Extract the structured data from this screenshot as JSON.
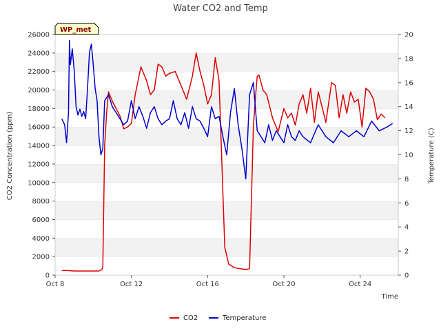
{
  "chart_data": {
    "type": "line",
    "title": "Water CO2 and Temp",
    "xlabel": "Time",
    "ylabel_left": "CO2 Concentration (ppm)",
    "ylabel_right": "Temperature (C)",
    "tag_label": "WP_met",
    "x_ticks": [
      "Oct 8",
      "Oct 12",
      "Oct 16",
      "Oct 20",
      "Oct 24"
    ],
    "x_tick_days": [
      8,
      12,
      16,
      20,
      24
    ],
    "xlim": [
      8,
      26
    ],
    "ylim_left": [
      0,
      26000
    ],
    "ylim_right": [
      0,
      20
    ],
    "y_ticks_left": [
      0,
      2000,
      4000,
      6000,
      8000,
      10000,
      12000,
      14000,
      16000,
      18000,
      20000,
      22000,
      24000,
      26000
    ],
    "y_ticks_right": [
      0,
      2,
      4,
      6,
      8,
      10,
      12,
      14,
      16,
      18,
      20
    ],
    "grid": "horizontal bands",
    "legend_position": "bottom-center",
    "series": [
      {
        "name": "CO2",
        "axis": "left",
        "color": "#dd0000",
        "x": [
          8.35,
          8.6,
          9.0,
          9.5,
          10.0,
          10.3,
          10.45,
          10.5,
          10.6,
          10.7,
          10.8,
          11.0,
          11.2,
          11.4,
          11.6,
          11.8,
          12.0,
          12.2,
          12.5,
          12.8,
          13.0,
          13.2,
          13.4,
          13.6,
          13.8,
          14.0,
          14.3,
          14.6,
          14.9,
          15.2,
          15.4,
          15.6,
          15.8,
          16.0,
          16.2,
          16.4,
          16.6,
          16.9,
          17.1,
          17.4,
          17.7,
          18.0,
          18.2,
          18.4,
          18.5,
          18.6,
          18.7,
          18.9,
          19.1,
          19.4,
          19.7,
          20.0,
          20.2,
          20.4,
          20.6,
          20.8,
          21.0,
          21.2,
          21.4,
          21.6,
          21.8,
          22.0,
          22.2,
          22.5,
          22.7,
          22.9,
          23.1,
          23.3,
          23.5,
          23.7,
          23.9,
          24.1,
          24.3,
          24.5,
          24.7,
          24.9,
          25.1,
          25.3
        ],
        "values": [
          500,
          500,
          450,
          450,
          450,
          450,
          600,
          900,
          14000,
          17500,
          19800,
          18800,
          18000,
          17200,
          15800,
          16000,
          16400,
          19500,
          22500,
          21000,
          19500,
          20000,
          22800,
          22500,
          21500,
          21800,
          22000,
          20500,
          19000,
          21500,
          24000,
          22000,
          20500,
          18500,
          19500,
          23500,
          21000,
          3000,
          1200,
          800,
          700,
          600,
          700,
          16000,
          19000,
          21500,
          21600,
          20000,
          19500,
          17000,
          15500,
          18000,
          17000,
          17500,
          16200,
          18500,
          19500,
          17500,
          20200,
          16500,
          19800,
          18200,
          16500,
          20800,
          20500,
          17000,
          19500,
          17500,
          19800,
          18700,
          19000,
          16000,
          20200,
          19800,
          19000,
          16800,
          17400,
          17000
        ]
      },
      {
        "name": "Temperature",
        "axis": "right",
        "color": "#0000cc",
        "x": [
          8.35,
          8.5,
          8.6,
          8.7,
          8.75,
          8.8,
          8.9,
          9.0,
          9.1,
          9.2,
          9.3,
          9.4,
          9.5,
          9.6,
          9.7,
          9.8,
          9.9,
          10.0,
          10.1,
          10.2,
          10.3,
          10.4,
          10.5,
          10.6,
          10.8,
          11.0,
          11.2,
          11.4,
          11.6,
          11.8,
          12.0,
          12.2,
          12.4,
          12.6,
          12.8,
          13.0,
          13.2,
          13.4,
          13.6,
          13.8,
          14.0,
          14.2,
          14.4,
          14.6,
          14.8,
          15.0,
          15.2,
          15.4,
          15.6,
          15.8,
          16.0,
          16.2,
          16.4,
          16.6,
          16.8,
          17.0,
          17.2,
          17.4,
          17.6,
          17.8,
          18.0,
          18.2,
          18.4,
          18.6,
          18.8,
          19.0,
          19.2,
          19.4,
          19.6,
          19.8,
          20.0,
          20.2,
          20.4,
          20.6,
          20.8,
          21.0,
          21.4,
          21.8,
          22.2,
          22.6,
          23.0,
          23.4,
          23.8,
          24.2,
          24.6,
          25.0,
          25.4,
          25.7
        ],
        "values": [
          13.0,
          12.5,
          11.0,
          13.5,
          19.5,
          17.5,
          18.8,
          17.0,
          14.0,
          13.3,
          13.8,
          13.2,
          13.6,
          13.0,
          15.5,
          18.5,
          19.2,
          17.5,
          15.5,
          14.5,
          11.5,
          10.0,
          10.5,
          14.5,
          15.0,
          14.0,
          13.5,
          13.0,
          12.5,
          12.8,
          14.5,
          13.0,
          14.0,
          13.2,
          12.2,
          13.5,
          14.0,
          13.0,
          12.5,
          12.8,
          13.0,
          14.5,
          13.0,
          12.5,
          13.5,
          12.2,
          14.0,
          13.0,
          12.8,
          12.2,
          11.5,
          14.0,
          13.0,
          13.2,
          11.5,
          10.0,
          13.5,
          15.5,
          12.5,
          10.5,
          8.0,
          15.0,
          16.0,
          12.0,
          11.5,
          11.0,
          12.5,
          11.2,
          12.0,
          11.5,
          11.0,
          12.5,
          11.5,
          11.2,
          12.0,
          11.5,
          11.0,
          12.5,
          11.5,
          11.0,
          12.0,
          11.5,
          12.0,
          11.5,
          12.8,
          12.0,
          12.3,
          12.6
        ]
      }
    ]
  }
}
